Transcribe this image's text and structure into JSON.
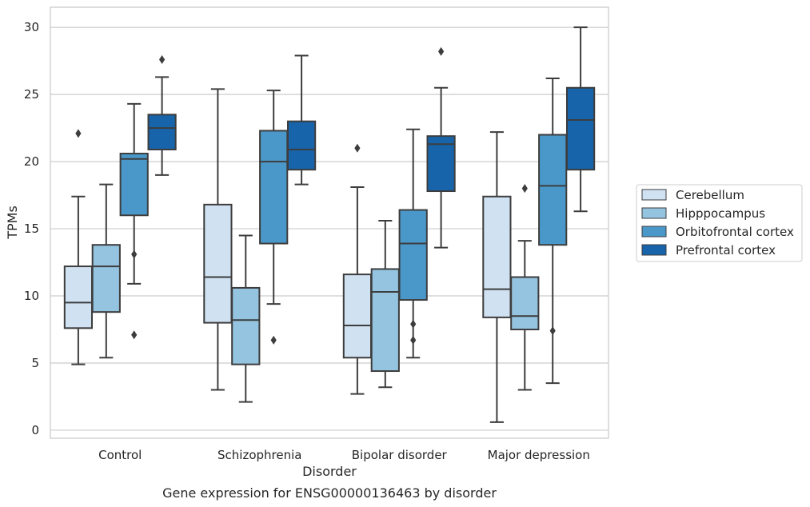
{
  "caption": "Gene expression for ENSG00000136463 by disorder",
  "chart_data": {
    "type": "boxplot",
    "xlabel": "Disorder",
    "ylabel": "TPMs",
    "ylim": [
      -0.6,
      31.5
    ],
    "yticks": [
      0,
      5,
      10,
      15,
      20,
      25,
      30
    ],
    "grid": "horizontal",
    "legend_position": "right",
    "categories": [
      "Control",
      "Schizophrenia",
      "Bipolar disorder",
      "Major depression"
    ],
    "series": [
      {
        "name": "Cerebellum",
        "color": "#d0e1f2",
        "boxes": [
          {
            "whislo": 4.9,
            "q1": 7.6,
            "med": 9.5,
            "q3": 12.2,
            "whishi": 17.4,
            "fliers": [
              22.1
            ]
          },
          {
            "whislo": 3.0,
            "q1": 8.0,
            "med": 11.4,
            "q3": 16.8,
            "whishi": 25.4,
            "fliers": []
          },
          {
            "whislo": 2.7,
            "q1": 5.4,
            "med": 7.8,
            "q3": 11.6,
            "whishi": 18.1,
            "fliers": [
              21.0
            ]
          },
          {
            "whislo": 0.6,
            "q1": 8.4,
            "med": 10.5,
            "q3": 17.4,
            "whishi": 22.2,
            "fliers": []
          }
        ]
      },
      {
        "name": "Hipppocampus",
        "color": "#94c4df",
        "boxes": [
          {
            "whislo": 5.4,
            "q1": 8.8,
            "med": 12.2,
            "q3": 13.8,
            "whishi": 18.3,
            "fliers": []
          },
          {
            "whislo": 2.1,
            "q1": 4.9,
            "med": 8.2,
            "q3": 10.6,
            "whishi": 14.5,
            "fliers": []
          },
          {
            "whislo": 3.2,
            "q1": 4.4,
            "med": 10.3,
            "q3": 12.0,
            "whishi": 15.6,
            "fliers": []
          },
          {
            "whislo": 3.0,
            "q1": 7.5,
            "med": 8.5,
            "q3": 11.4,
            "whishi": 14.1,
            "fliers": [
              18.0
            ]
          }
        ]
      },
      {
        "name": "Orbitofrontal cortex",
        "color": "#4a98c9",
        "boxes": [
          {
            "whislo": 10.9,
            "q1": 16.0,
            "med": 20.2,
            "q3": 20.6,
            "whishi": 24.3,
            "fliers": [
              13.1,
              7.1
            ]
          },
          {
            "whislo": 9.4,
            "q1": 13.9,
            "med": 20.0,
            "q3": 22.3,
            "whishi": 25.3,
            "fliers": [
              6.7
            ]
          },
          {
            "whislo": 5.4,
            "q1": 9.7,
            "med": 13.9,
            "q3": 16.4,
            "whishi": 22.4,
            "fliers": [
              7.9,
              6.7
            ]
          },
          {
            "whislo": 3.5,
            "q1": 13.8,
            "med": 18.2,
            "q3": 22.0,
            "whishi": 26.2,
            "fliers": [
              7.4
            ]
          }
        ]
      },
      {
        "name": "Prefrontal cortex",
        "color": "#1764ab",
        "boxes": [
          {
            "whislo": 19.0,
            "q1": 20.9,
            "med": 22.5,
            "q3": 23.5,
            "whishi": 26.3,
            "fliers": [
              27.6
            ]
          },
          {
            "whislo": 18.3,
            "q1": 19.4,
            "med": 20.9,
            "q3": 23.0,
            "whishi": 27.9,
            "fliers": []
          },
          {
            "whislo": 13.6,
            "q1": 17.8,
            "med": 21.3,
            "q3": 21.9,
            "whishi": 25.5,
            "fliers": [
              28.2
            ]
          },
          {
            "whislo": 16.3,
            "q1": 19.4,
            "med": 23.1,
            "q3": 25.5,
            "whishi": 30.0,
            "fliers": []
          }
        ]
      }
    ]
  }
}
